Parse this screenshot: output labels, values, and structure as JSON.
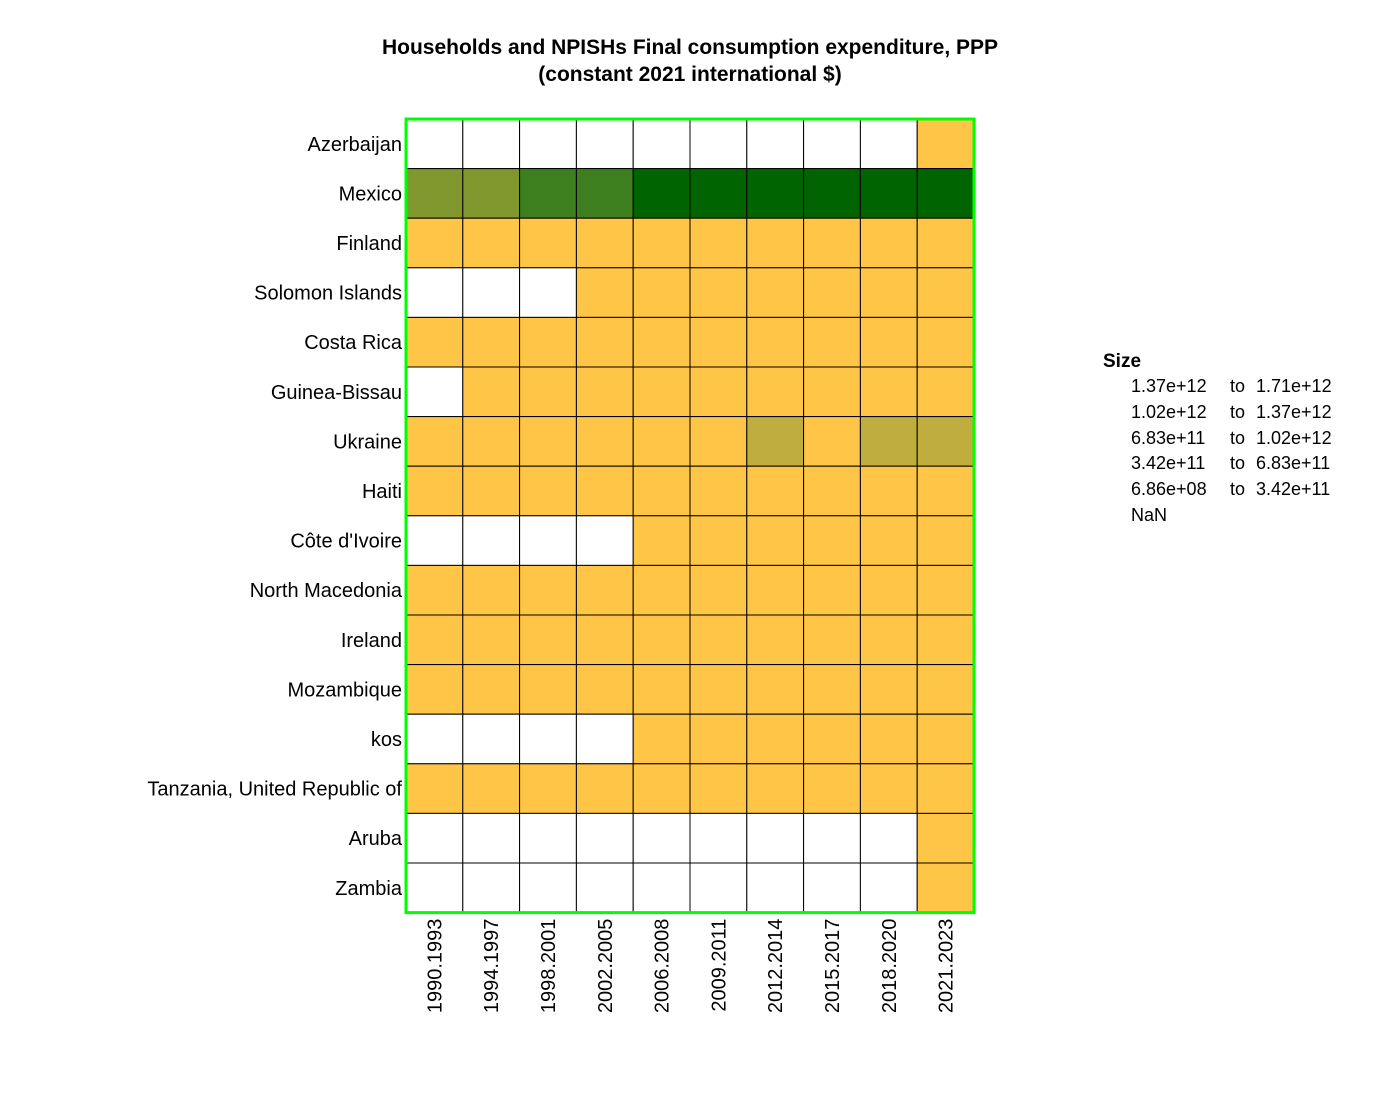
{
  "chart_data": {
    "type": "heatmap",
    "title": "Households and NPISHs Final consumption expenditure, PPP",
    "subtitle": "(constant 2021 international $)",
    "x_categories": [
      "1990.1993",
      "1994.1997",
      "1998.2001",
      "2002.2005",
      "2006.2008",
      "2009.2011",
      "2012.2014",
      "2015.2017",
      "2018.2020",
      "2021.2023"
    ],
    "y_categories": [
      "Azerbaijan",
      "Mexico",
      "Finland",
      "Solomon Islands",
      "Costa Rica",
      "Guinea-Bissau",
      "Ukraine",
      "Haiti",
      "Côte d'Ivoire",
      "North Macedonia",
      "Ireland",
      "Mozambique",
      "kos",
      "Tanzania, United Republic of",
      "Aruba",
      "Zambia"
    ],
    "legend": {
      "title": "Size",
      "placement": "right",
      "bins": [
        {
          "from": "1.37e+12",
          "to_word": "to",
          "to": "1.71e+12",
          "color": "#006400"
        },
        {
          "from": "1.02e+12",
          "to_word": "to",
          "to": "1.37e+12",
          "color": "#3d7e1f"
        },
        {
          "from": "6.83e+11",
          "to_word": "to",
          "to": "1.02e+12",
          "color": "#80972e"
        },
        {
          "from": "3.42e+11",
          "to_word": "to",
          "to": "6.83e+11",
          "color": "#bfae3d"
        },
        {
          "from": "6.86e+08",
          "to_word": "to",
          "to": "3.42e+11",
          "color": "#ffc546"
        },
        {
          "from": "NaN",
          "to_word": "",
          "to": "",
          "color": "#ffffff"
        }
      ]
    },
    "bin_index_by_row": [
      [
        5,
        5,
        5,
        5,
        5,
        5,
        5,
        5,
        5,
        4
      ],
      [
        2,
        2,
        1,
        1,
        0,
        0,
        0,
        0,
        0,
        0
      ],
      [
        4,
        4,
        4,
        4,
        4,
        4,
        4,
        4,
        4,
        4
      ],
      [
        5,
        5,
        5,
        4,
        4,
        4,
        4,
        4,
        4,
        4
      ],
      [
        4,
        4,
        4,
        4,
        4,
        4,
        4,
        4,
        4,
        4
      ],
      [
        5,
        4,
        4,
        4,
        4,
        4,
        4,
        4,
        4,
        4
      ],
      [
        4,
        4,
        4,
        4,
        4,
        4,
        3,
        4,
        3,
        3
      ],
      [
        4,
        4,
        4,
        4,
        4,
        4,
        4,
        4,
        4,
        4
      ],
      [
        5,
        5,
        5,
        5,
        4,
        4,
        4,
        4,
        4,
        4
      ],
      [
        4,
        4,
        4,
        4,
        4,
        4,
        4,
        4,
        4,
        4
      ],
      [
        4,
        4,
        4,
        4,
        4,
        4,
        4,
        4,
        4,
        4
      ],
      [
        4,
        4,
        4,
        4,
        4,
        4,
        4,
        4,
        4,
        4
      ],
      [
        5,
        5,
        5,
        5,
        4,
        4,
        4,
        4,
        4,
        4
      ],
      [
        4,
        4,
        4,
        4,
        4,
        4,
        4,
        4,
        4,
        4
      ],
      [
        5,
        5,
        5,
        5,
        5,
        5,
        5,
        5,
        5,
        4
      ],
      [
        5,
        5,
        5,
        5,
        5,
        5,
        5,
        5,
        5,
        4
      ]
    ],
    "grid": true,
    "frame_color": "#00ff00",
    "cell_border_color": "#000000"
  }
}
